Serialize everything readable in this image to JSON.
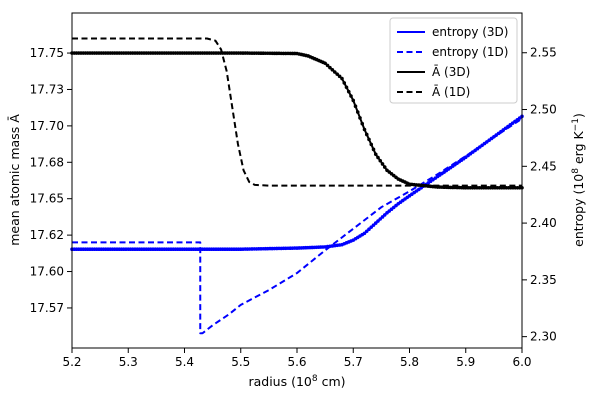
{
  "chart_data": {
    "type": "line",
    "xlabel": "radius (10",
    "xlabel_sup": "8",
    "xlabel_tail": " cm)",
    "ylabel_left": "mean atomic mass Ā",
    "ylabel_right_a": "entropy (10",
    "ylabel_right_sup1": "8",
    "ylabel_right_b": " erg K",
    "ylabel_right_sup2": "−1",
    "ylabel_right_c": ")",
    "xlim": [
      5.2,
      6.0
    ],
    "ylim_left": [
      17.55,
      17.78
    ],
    "ylim_right": [
      2.29,
      2.585
    ],
    "x_ticks": [
      "5.2",
      "5.3",
      "5.4",
      "5.5",
      "5.6",
      "5.7",
      "5.8",
      "5.9",
      "6.0"
    ],
    "y_left_ticks": [
      "17.75",
      "17.73",
      "17.70",
      "17.68",
      "17.65",
      "17.62",
      "17.60",
      "17.57"
    ],
    "y_left_tick_values": [
      17.7525,
      17.7275,
      17.7025,
      17.6775,
      17.6525,
      17.6275,
      17.6025,
      17.5775
    ],
    "y_right_ticks": [
      "2.55",
      "2.50",
      "2.45",
      "2.40",
      "2.35",
      "2.30"
    ],
    "y_right_tick_values": [
      2.55,
      2.5,
      2.45,
      2.4,
      2.35,
      2.3
    ],
    "legend_position": "top-right",
    "series": [
      {
        "name": "entropy (3D)",
        "axis": "right",
        "color": "#0000ff",
        "style": "solid",
        "markers": true,
        "x": [
          5.2,
          5.3,
          5.4,
          5.5,
          5.6,
          5.65,
          5.68,
          5.7,
          5.72,
          5.74,
          5.76,
          5.78,
          5.8,
          5.85,
          5.9,
          5.95,
          6.0
        ],
        "y": [
          2.377,
          2.377,
          2.377,
          2.377,
          2.378,
          2.379,
          2.381,
          2.385,
          2.391,
          2.4,
          2.409,
          2.417,
          2.424,
          2.441,
          2.458,
          2.476,
          2.494
        ]
      },
      {
        "name": "entropy (1D)",
        "axis": "right",
        "color": "#0000ff",
        "style": "dashed",
        "markers": false,
        "x": [
          5.2,
          5.428,
          5.428,
          5.432,
          5.45,
          5.48,
          5.5,
          5.55,
          5.6,
          5.65,
          5.7,
          5.75,
          5.8,
          5.85,
          5.9,
          6.0
        ],
        "y": [
          2.383,
          2.383,
          2.303,
          2.303,
          2.31,
          2.32,
          2.328,
          2.341,
          2.356,
          2.376,
          2.395,
          2.414,
          2.428,
          2.443,
          2.459,
          2.492
        ]
      },
      {
        "name": "Ā (3D)",
        "axis": "left",
        "color": "#000000",
        "style": "solid",
        "markers": true,
        "x": [
          5.2,
          5.4,
          5.5,
          5.6,
          5.62,
          5.65,
          5.68,
          5.7,
          5.72,
          5.74,
          5.76,
          5.78,
          5.8,
          5.85,
          5.9,
          6.0
        ],
        "y": [
          17.7525,
          17.7525,
          17.7525,
          17.7522,
          17.7505,
          17.7455,
          17.735,
          17.72,
          17.7,
          17.683,
          17.672,
          17.666,
          17.6625,
          17.6605,
          17.66,
          17.66
        ]
      },
      {
        "name": "Ā (1D)",
        "axis": "left",
        "color": "#000000",
        "style": "dashed",
        "markers": false,
        "x": [
          5.2,
          5.44,
          5.455,
          5.465,
          5.475,
          5.485,
          5.495,
          5.505,
          5.515,
          5.525,
          5.55,
          6.0
        ],
        "y": [
          17.7625,
          17.7625,
          17.761,
          17.755,
          17.74,
          17.715,
          17.69,
          17.672,
          17.664,
          17.662,
          17.6615,
          17.6615
        ]
      }
    ]
  }
}
